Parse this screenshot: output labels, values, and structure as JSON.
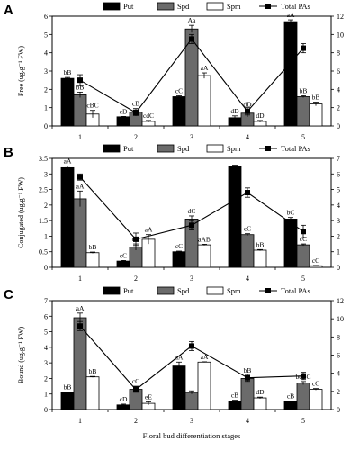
{
  "chart_data": [
    {
      "type": "bar",
      "panel": "A",
      "ylabel": "Free (ug.g⁻¹ FW)",
      "categories": [
        "1",
        "2",
        "3",
        "4",
        "5"
      ],
      "ylim": [
        0,
        6
      ],
      "yticks": [
        0,
        1,
        2,
        3,
        4,
        5,
        6
      ],
      "y2lim": [
        0,
        12
      ],
      "y2ticks": [
        0,
        2,
        4,
        6,
        8,
        10,
        12
      ],
      "legend": [
        "Put",
        "Spd",
        "Spm",
        "Total PAs"
      ],
      "series": [
        {
          "name": "Put",
          "kind": "bar",
          "fill": "#000000",
          "values": [
            2.6,
            0.5,
            1.6,
            0.45,
            5.7
          ],
          "errors": [
            0.05,
            0.02,
            0.05,
            0.1,
            0.1
          ],
          "labels": [
            "bB",
            "cD",
            "cC",
            "dD",
            "aA"
          ]
        },
        {
          "name": "Spd",
          "kind": "bar",
          "fill": "#6b6b6b",
          "values": [
            1.7,
            0.75,
            5.3,
            0.7,
            1.6
          ],
          "errors": [
            0.15,
            0.2,
            0.2,
            0.2,
            0.05
          ],
          "labels": [
            "bB",
            "cB",
            "Aa",
            "dD",
            "bB"
          ]
        },
        {
          "name": "Spm",
          "kind": "bar",
          "fill": "#ffffff",
          "values": [
            0.65,
            0.25,
            2.75,
            0.25,
            1.2
          ],
          "errors": [
            0.2,
            0.05,
            0.15,
            0.05,
            0.1
          ],
          "labels": [
            "cBC",
            "cdC",
            "aA",
            "dD",
            "bB"
          ]
        },
        {
          "name": "Total PAs",
          "kind": "line",
          "values": [
            5.0,
            1.45,
            9.5,
            1.6,
            8.5
          ],
          "errors": [
            0.6,
            0.3,
            0.5,
            0.4,
            0.5
          ]
        }
      ]
    },
    {
      "type": "bar",
      "panel": "B",
      "ylabel": "Conjugated (ug.g⁻¹ FW)",
      "categories": [
        "1",
        "2",
        "3",
        "4",
        "5"
      ],
      "ylim": [
        0,
        3.5
      ],
      "yticks": [
        0,
        0.5,
        1,
        1.5,
        2,
        2.5,
        3,
        3.5
      ],
      "y2lim": [
        0,
        7
      ],
      "y2ticks": [
        0,
        1,
        2,
        3,
        4,
        5,
        6,
        7
      ],
      "legend": [
        "Put",
        "Spd",
        "Spm",
        "Total PAs"
      ],
      "series": [
        {
          "name": "Put",
          "kind": "bar",
          "fill": "#000000",
          "values": [
            3.2,
            0.2,
            0.5,
            3.25,
            1.55
          ],
          "errors": [
            0.05,
            0.02,
            0.02,
            0.03,
            0.05
          ],
          "labels": [
            "aA",
            "cC",
            "cC",
            "",
            "bC"
          ]
        },
        {
          "name": "Spd",
          "kind": "bar",
          "fill": "#6b6b6b",
          "values": [
            2.2,
            0.65,
            1.55,
            1.05,
            0.72
          ],
          "errors": [
            0.25,
            0.1,
            0.1,
            0.03,
            0.03
          ],
          "labels": [
            "aA",
            "dC",
            "dC",
            "cC",
            "cC"
          ]
        },
        {
          "name": "Spm",
          "kind": "bar",
          "fill": "#ffffff",
          "values": [
            0.47,
            0.9,
            0.72,
            0.55,
            0.05
          ],
          "errors": [
            0.02,
            0.15,
            0.02,
            0.02,
            0.01
          ],
          "labels": [
            "bB",
            "aA",
            "aAB",
            "bB",
            "cC"
          ]
        },
        {
          "name": "Total PAs",
          "kind": "line",
          "values": [
            5.8,
            1.8,
            2.7,
            4.8,
            2.3
          ],
          "errors": [
            0.2,
            0.4,
            0.3,
            0.3,
            0.4
          ]
        }
      ]
    },
    {
      "type": "bar",
      "panel": "C",
      "ylabel": "Bound (ug.g⁻¹ FW)",
      "categories": [
        "1",
        "2",
        "3",
        "4",
        "5"
      ],
      "ylim": [
        0,
        7
      ],
      "yticks": [
        0,
        1,
        2,
        3,
        4,
        5,
        6,
        7
      ],
      "y2lim": [
        0,
        12
      ],
      "y2ticks": [
        0,
        2,
        4,
        6,
        8,
        10,
        12
      ],
      "xlabel": "Floral bud differentiation stages",
      "legend": [
        "Put",
        "Spd",
        "Spm",
        "Total PAs"
      ],
      "series": [
        {
          "name": "Put",
          "kind": "bar",
          "fill": "#000000",
          "values": [
            1.1,
            0.3,
            2.8,
            0.55,
            0.5
          ],
          "errors": [
            0.03,
            0.05,
            0.25,
            0.05,
            0.05
          ],
          "labels": [
            "bB",
            "cD",
            "aA",
            "cB",
            "cB"
          ]
        },
        {
          "name": "Spd",
          "kind": "bar",
          "fill": "#6b6b6b",
          "values": [
            5.9,
            1.3,
            1.1,
            2.0,
            1.7
          ],
          "errors": [
            0.3,
            0.2,
            0.1,
            0.2,
            0.1
          ],
          "labels": [
            "aA",
            "cC",
            "",
            "bB",
            "bcBC"
          ]
        },
        {
          "name": "Spm",
          "kind": "bar",
          "fill": "#ffffff",
          "values": [
            2.1,
            0.4,
            3.05,
            0.75,
            1.3
          ],
          "errors": [
            0.03,
            0.1,
            0.02,
            0.05,
            0.05
          ],
          "labels": [
            "bB",
            "eE",
            "aA",
            "dD",
            "cC"
          ]
        },
        {
          "name": "Total PAs",
          "kind": "line",
          "values": [
            9.2,
            2.2,
            7.0,
            3.5,
            3.7
          ],
          "errors": [
            0.5,
            0.3,
            0.5,
            0.4,
            0.4
          ]
        }
      ]
    }
  ]
}
